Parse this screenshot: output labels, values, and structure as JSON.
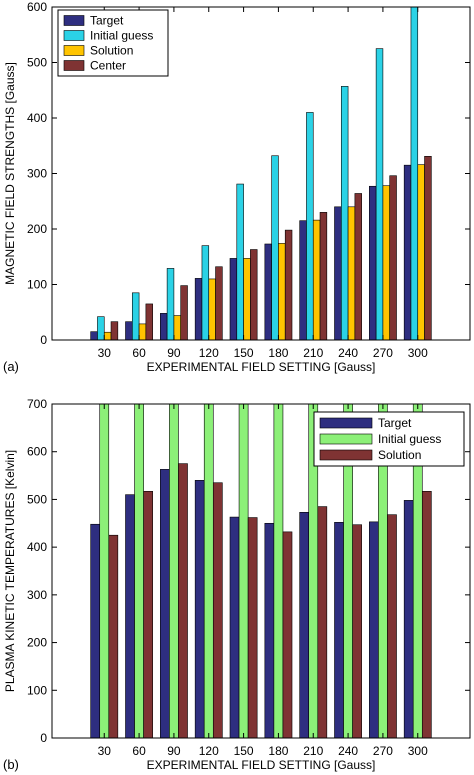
{
  "chart_data": [
    {
      "type": "bar",
      "panel_label": "(a)",
      "categories": [
        "30",
        "60",
        "90",
        "120",
        "150",
        "180",
        "210",
        "240",
        "270",
        "300"
      ],
      "xlabel": "EXPERIMENTAL FIELD SETTING [Gauss]",
      "ylabel": "MAGNETIC FIELD STRENGTHS [Gauss]",
      "ylim": [
        0,
        600
      ],
      "yticks": [
        0,
        100,
        200,
        300,
        400,
        500,
        600
      ],
      "legend_position": "top-left",
      "series": [
        {
          "name": "Target",
          "color": "#2e2e80",
          "values": [
            15,
            33,
            48,
            111,
            147,
            173,
            215,
            240,
            277,
            315
          ]
        },
        {
          "name": "Initial guess",
          "color": "#2bd2e6",
          "values": [
            42,
            85,
            129,
            170,
            281,
            332,
            410,
            457,
            525,
            600
          ]
        },
        {
          "name": "Solution",
          "color": "#ffc400",
          "values": [
            14,
            29,
            44,
            110,
            147,
            174,
            216,
            240,
            278,
            316
          ]
        },
        {
          "name": "Center",
          "color": "#7f3333",
          "values": [
            33,
            65,
            98,
            132,
            163,
            198,
            230,
            264,
            296,
            331
          ]
        }
      ]
    },
    {
      "type": "bar",
      "panel_label": "(b)",
      "categories": [
        "30",
        "60",
        "90",
        "120",
        "150",
        "180",
        "210",
        "240",
        "270",
        "300"
      ],
      "xlabel": "EXPERIMENTAL FIELD SETTING [Gauss]",
      "ylabel": "PLASMA KINETIC TEMPERATURES [Kelvin]",
      "ylim": [
        0,
        700
      ],
      "yticks": [
        0,
        100,
        200,
        300,
        400,
        500,
        600,
        700
      ],
      "legend_position": "top-right",
      "series": [
        {
          "name": "Target",
          "color": "#2e2e80",
          "values": [
            448,
            510,
            563,
            540,
            463,
            450,
            473,
            452,
            453,
            498
          ]
        },
        {
          "name": "Initial guess",
          "color": "#8cf078",
          "values": [
            700,
            700,
            700,
            700,
            700,
            700,
            700,
            700,
            700,
            700
          ]
        },
        {
          "name": "Solution",
          "color": "#7f3333",
          "values": [
            425,
            517,
            575,
            535,
            462,
            432,
            485,
            447,
            468,
            517
          ]
        }
      ]
    }
  ]
}
